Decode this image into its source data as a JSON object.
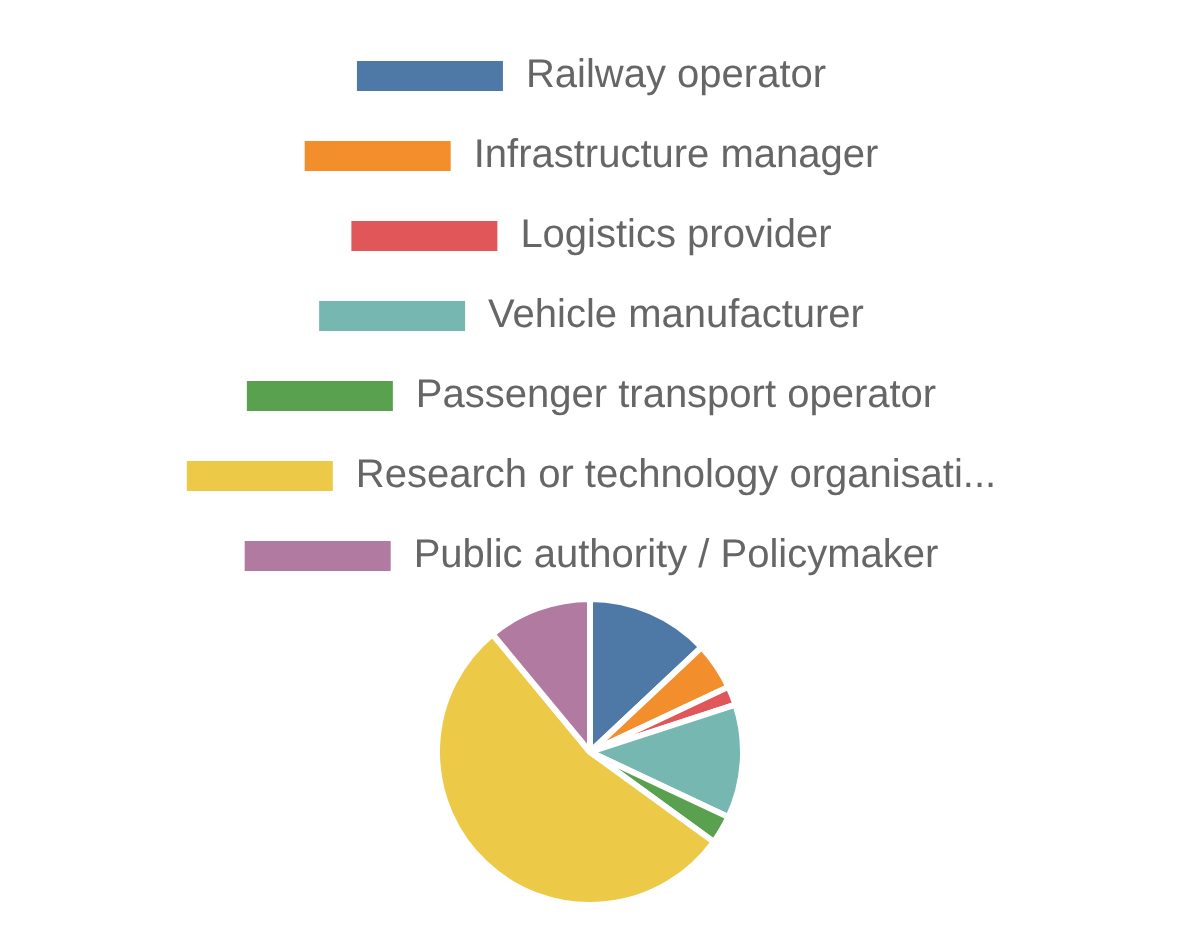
{
  "chart_data": {
    "type": "pie",
    "categories": [
      "Railway operator",
      "Infrastructure manager",
      "Logistics provider",
      "Vehicle manufacturer",
      "Passenger transport operator",
      "Research or technology organisati...",
      "Public authority / Policymaker"
    ],
    "values": [
      13,
      5,
      2,
      12,
      3,
      54,
      11
    ],
    "colors": [
      "#4e79a7",
      "#f28e2b",
      "#e15759",
      "#76b7b2",
      "#59a14f",
      "#edc948",
      "#b07aa1"
    ],
    "legend": "top"
  }
}
